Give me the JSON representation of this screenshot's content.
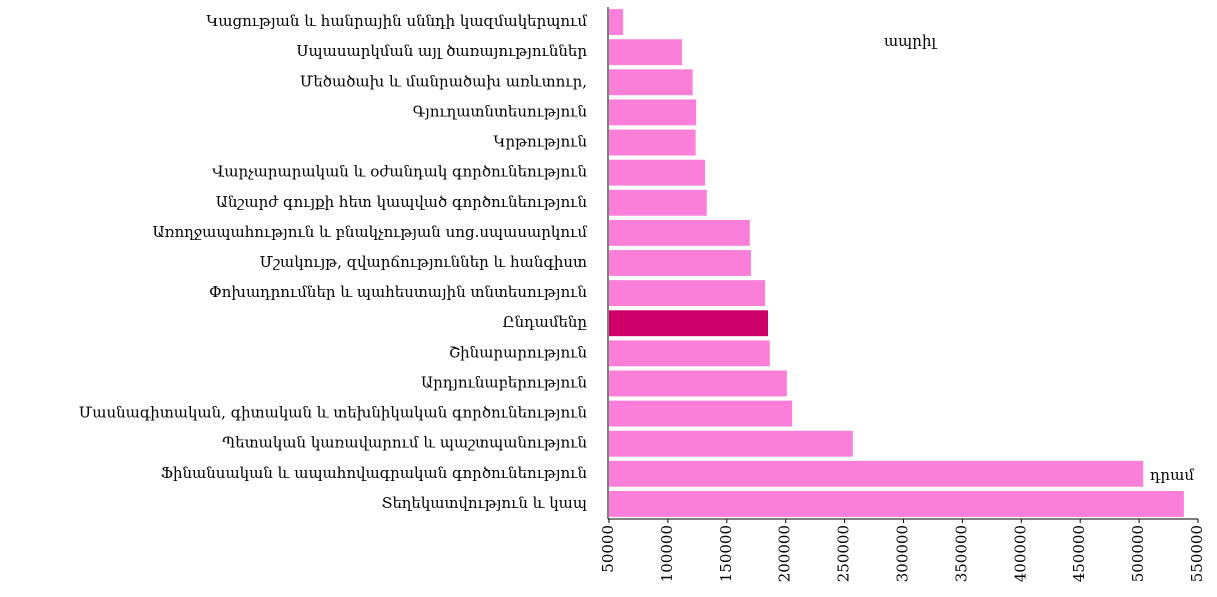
{
  "chart_data": {
    "type": "barh",
    "categories": [
      "Կացության և հանրային սննդի կազմակերպում",
      "Սպասարկման այլ ծառայություններ",
      "Մեծածախ և մանրածախ առևտուր,",
      "Գյուղատնտեսություն",
      "Կրթություն",
      "Վարչարարական և օժանդակ գործունեություն",
      "Անշարժ գույքի հետ կապված գործունեություն",
      "Առողջապահություն և բնակչության սոց.սպասարկում",
      "Մշակույթ, զվարճություններ և հանգիստ",
      "Փոխադրումներ և պահեստային տնտեսություն",
      "Ընդամենը",
      "Շինարարություն",
      "Արդյունաբերություն",
      "Մասնագիտական, գիտական և տեխնիկական գործունեություն",
      "Պետական կառավարում և պաշտպանություն",
      "Ֆինանսական և ապահովագրական գործունեություն",
      "Տեղեկատվություն և կապ"
    ],
    "values": [
      62000,
      112000,
      121000,
      124000,
      123500,
      131500,
      133000,
      169500,
      170500,
      182500,
      185000,
      186500,
      201000,
      205500,
      257000,
      503500,
      538000
    ],
    "colors": [
      "#fb7fd9",
      "#fb7fd9",
      "#fb7fd9",
      "#fb7fd9",
      "#fb7fd9",
      "#fb7fd9",
      "#fb7fd9",
      "#fb7fd9",
      "#fb7fd9",
      "#fb7fd9",
      "#cc0066",
      "#fb7fd9",
      "#fb7fd9",
      "#fb7fd9",
      "#fb7fd9",
      "#fb7fd9",
      "#fb7fd9"
    ],
    "xlim": [
      50000,
      550000
    ],
    "xticks": [
      50000,
      100000,
      150000,
      200000,
      250000,
      300000,
      350000,
      400000,
      450000,
      500000,
      550000
    ],
    "annotations": [
      "ապրիլ",
      "դրամ"
    ]
  }
}
